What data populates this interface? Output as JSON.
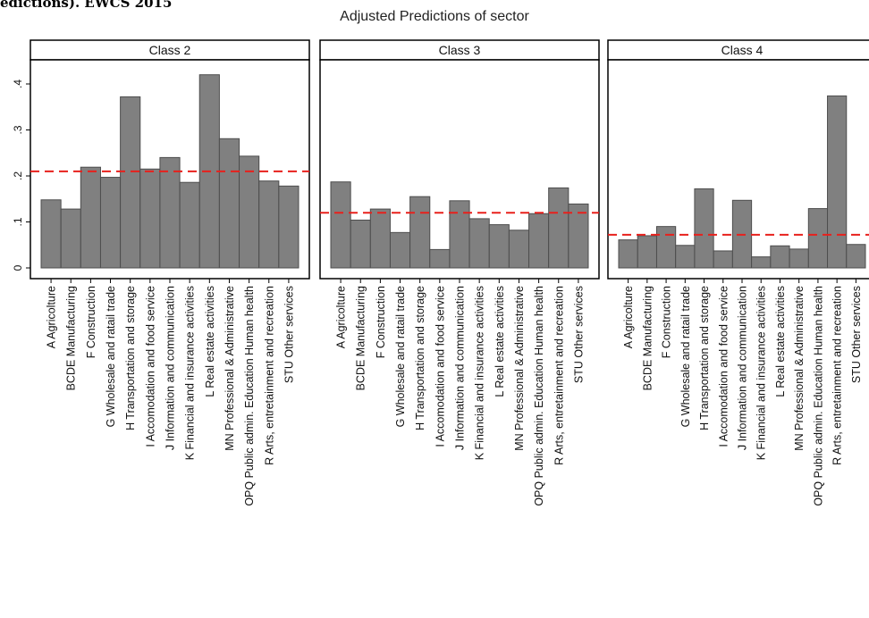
{
  "doc_heading": "edictions). EWCS 2015",
  "chart_data": {
    "type": "bar",
    "title": "Adjusted Predictions of sector",
    "xlabel": "",
    "ylabel": "",
    "ylim": [
      0,
      0.45
    ],
    "yticks": [
      0,
      0.1,
      0.2,
      0.3,
      0.4
    ],
    "ytick_labels": [
      "0",
      ".1",
      ".2",
      ".3",
      ".4"
    ],
    "grid": false,
    "colors": {
      "bar": "#808080",
      "bar_edge": "#4d4d4d",
      "reference_line": "#e8201c",
      "strip": "#ffffff"
    },
    "categories": [
      "A Agricolture",
      "BCDE Manufacturing",
      "F Construction",
      "G Wholesale and ratail trade",
      "H Transportation and storage",
      "I Accomodation and food service",
      "J Information and communication",
      "K Financial and insurance activities",
      "L Real estate activities",
      "MN Professional & Administrative",
      "OPQ Public admin. Education Human health",
      "R Arts, entretainment and recreation",
      "STU Other services"
    ],
    "panels": [
      {
        "label": "Class 2",
        "reference": 0.21,
        "values": [
          0.148,
          0.128,
          0.219,
          0.197,
          0.372,
          0.215,
          0.24,
          0.186,
          0.42,
          0.281,
          0.243,
          0.189,
          0.178
        ]
      },
      {
        "label": "Class 3",
        "reference": 0.12,
        "values": [
          0.187,
          0.104,
          0.128,
          0.077,
          0.155,
          0.04,
          0.146,
          0.107,
          0.094,
          0.082,
          0.118,
          0.174,
          0.139
        ]
      },
      {
        "label": "Class 4",
        "reference": 0.072,
        "values": [
          0.061,
          0.07,
          0.09,
          0.049,
          0.172,
          0.037,
          0.147,
          0.024,
          0.048,
          0.041,
          0.129,
          0.374,
          0.051
        ]
      }
    ]
  }
}
